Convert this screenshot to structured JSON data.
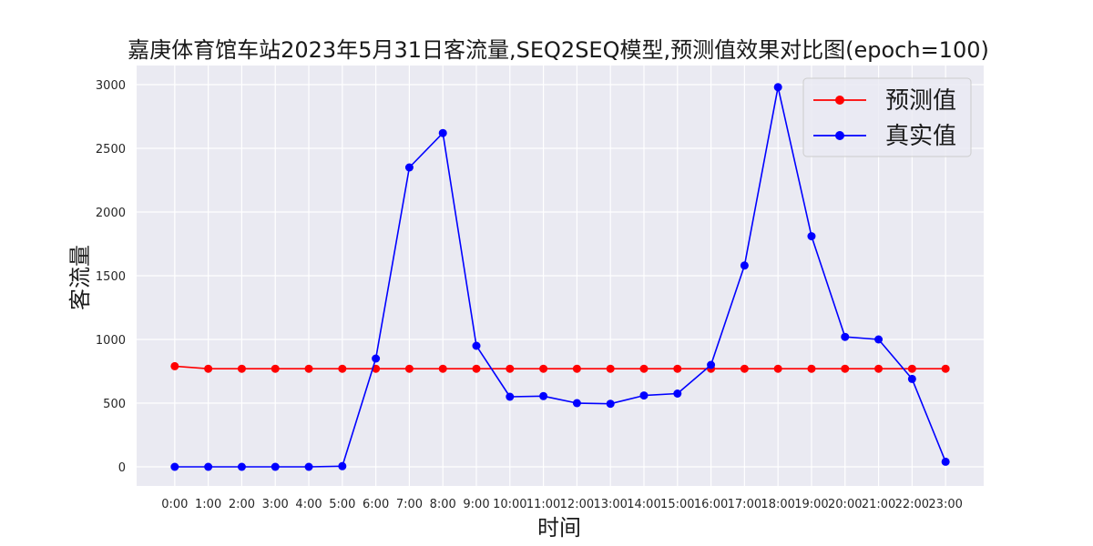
{
  "chart_data": {
    "type": "line",
    "title": "嘉庚体育馆车站2023年5月31日客流量,SEQ2SEQ模型,预测值效果对比图(epoch=100)",
    "xlabel": "时间",
    "ylabel": "客流量",
    "categories": [
      "0:00",
      "1:00",
      "2:00",
      "3:00",
      "4:00",
      "5:00",
      "6:00",
      "7:00",
      "8:00",
      "9:00",
      "10:00",
      "11:00",
      "12:00",
      "13:00",
      "14:00",
      "15:00",
      "16:00",
      "17:00",
      "18:00",
      "19:00",
      "20:00",
      "21:00",
      "22:00",
      "23:00"
    ],
    "ylim": [
      -150,
      3150
    ],
    "yticks": [
      0,
      500,
      1000,
      1500,
      2000,
      2500,
      3000
    ],
    "grid": true,
    "legend_position": "top-right",
    "series": [
      {
        "name": "预测值",
        "color": "#ff0000",
        "values": [
          790,
          770,
          770,
          770,
          770,
          770,
          770,
          770,
          770,
          770,
          770,
          770,
          770,
          770,
          770,
          770,
          770,
          770,
          770,
          770,
          770,
          770,
          770,
          770
        ]
      },
      {
        "name": "真实值",
        "color": "#0000ff",
        "values": [
          0,
          0,
          0,
          0,
          0,
          5,
          850,
          2350,
          2620,
          950,
          550,
          555,
          500,
          495,
          560,
          575,
          800,
          1580,
          2980,
          1810,
          1020,
          1000,
          690,
          40
        ]
      }
    ]
  }
}
